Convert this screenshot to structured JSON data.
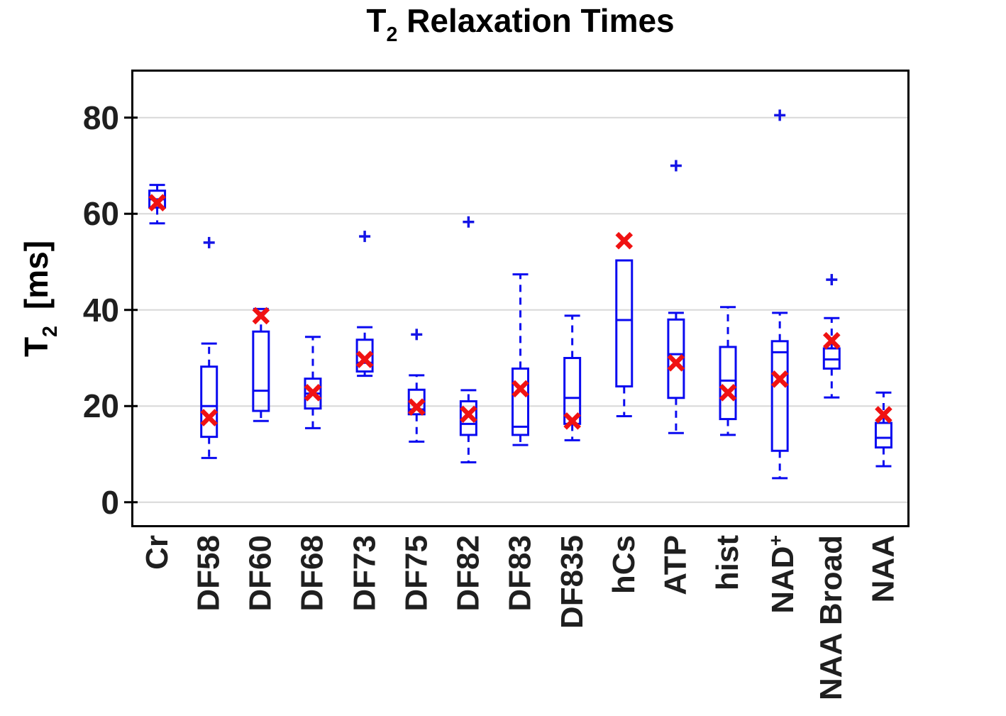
{
  "title": {
    "prefix": "T",
    "sub": "2",
    "rest": " Relaxation Times"
  },
  "y_axis": {
    "label_prefix": "T",
    "label_sub": "2",
    "label_unit": "[ms]"
  },
  "colors": {
    "box": "#0a0af0",
    "mean_marker": "#f01212",
    "outlier": "#1414e6",
    "grid": "#d8d8d8",
    "axis": "#000000",
    "tick_label": "#1f1f1f"
  },
  "x_tick_labels": [
    {
      "text": "Cr",
      "sup": ""
    },
    {
      "text": "DF58",
      "sup": ""
    },
    {
      "text": "DF60",
      "sup": ""
    },
    {
      "text": "DF68",
      "sup": ""
    },
    {
      "text": "DF73",
      "sup": ""
    },
    {
      "text": "DF75",
      "sup": ""
    },
    {
      "text": "DF82",
      "sup": ""
    },
    {
      "text": "DF83",
      "sup": ""
    },
    {
      "text": "DF835",
      "sup": ""
    },
    {
      "text": "hCs",
      "sup": ""
    },
    {
      "text": "ATP",
      "sup": ""
    },
    {
      "text": "hist",
      "sup": ""
    },
    {
      "text": "NAD",
      "sup": "+"
    },
    {
      "text": "NAA Broad",
      "sup": ""
    },
    {
      "text": "NAA",
      "sup": ""
    }
  ],
  "chart_data": {
    "type": "boxplot",
    "title": "T2 Relaxation Times",
    "ylabel": "T2 [ms]",
    "ylim": [
      -5.2,
      90
    ],
    "yticks": [
      0,
      20,
      40,
      60,
      80
    ],
    "grid": "horizontal",
    "legend": "none",
    "mean_marker": "red x",
    "outlier_marker": "blue +",
    "categories": [
      "Cr",
      "DF58",
      "DF60",
      "DF68",
      "DF73",
      "DF75",
      "DF82",
      "DF83",
      "DF835",
      "hCs",
      "ATP",
      "hist",
      "NAD+",
      "NAA Broad",
      "NAA"
    ],
    "series": [
      {
        "name": "Cr",
        "whisker_low": 58.0,
        "q1": 61.3,
        "median": 63.0,
        "q3": 64.8,
        "whisker_high": 66.0,
        "mean": 62.3,
        "outliers": []
      },
      {
        "name": "DF58",
        "whisker_low": 9.2,
        "q1": 13.6,
        "median": 20.0,
        "q3": 28.2,
        "whisker_high": 33.0,
        "mean": 17.6,
        "outliers": [
          54.0
        ]
      },
      {
        "name": "DF60",
        "whisker_low": 16.9,
        "q1": 19.0,
        "median": 23.2,
        "q3": 35.5,
        "whisker_high": 40.2,
        "mean": 38.8,
        "outliers": []
      },
      {
        "name": "DF68",
        "whisker_low": 15.4,
        "q1": 19.5,
        "median": 22.6,
        "q3": 25.7,
        "whisker_high": 34.4,
        "mean": 22.8,
        "outliers": []
      },
      {
        "name": "DF73",
        "whisker_low": 26.3,
        "q1": 27.2,
        "median": 29.0,
        "q3": 33.8,
        "whisker_high": 36.4,
        "mean": 29.7,
        "outliers": [
          55.3
        ]
      },
      {
        "name": "DF75",
        "whisker_low": 12.6,
        "q1": 18.3,
        "median": 19.3,
        "q3": 23.4,
        "whisker_high": 26.4,
        "mean": 19.8,
        "outliers": [
          34.9
        ]
      },
      {
        "name": "DF82",
        "whisker_low": 8.3,
        "q1": 14.0,
        "median": 16.3,
        "q3": 21.0,
        "whisker_high": 23.3,
        "mean": 18.3,
        "outliers": [
          58.3
        ]
      },
      {
        "name": "DF83",
        "whisker_low": 11.9,
        "q1": 14.0,
        "median": 15.7,
        "q3": 27.8,
        "whisker_high": 47.4,
        "mean": 23.6,
        "outliers": []
      },
      {
        "name": "DF835",
        "whisker_low": 12.9,
        "q1": 16.3,
        "median": 21.7,
        "q3": 30.0,
        "whisker_high": 38.8,
        "mean": 16.9,
        "outliers": []
      },
      {
        "name": "hCs",
        "whisker_low": 17.9,
        "q1": 24.1,
        "median": 37.9,
        "q3": 50.3,
        "whisker_high": 50.3,
        "mean": 54.4,
        "outliers": []
      },
      {
        "name": "ATP",
        "whisker_low": 14.4,
        "q1": 21.7,
        "median": 30.8,
        "q3": 38.0,
        "whisker_high": 39.4,
        "mean": 29.0,
        "outliers": [
          70.0
        ]
      },
      {
        "name": "hist",
        "whisker_low": 14.0,
        "q1": 17.3,
        "median": 25.3,
        "q3": 32.3,
        "whisker_high": 40.6,
        "mean": 22.8,
        "outliers": []
      },
      {
        "name": "NAD+",
        "whisker_low": 5.0,
        "q1": 10.7,
        "median": 31.2,
        "q3": 33.5,
        "whisker_high": 39.4,
        "mean": 25.6,
        "outliers": [
          80.5
        ]
      },
      {
        "name": "NAA Broad",
        "whisker_low": 21.8,
        "q1": 27.8,
        "median": 29.7,
        "q3": 32.0,
        "whisker_high": 38.3,
        "mean": 33.6,
        "outliers": [
          46.3
        ]
      },
      {
        "name": "NAA",
        "whisker_low": 7.5,
        "q1": 11.4,
        "median": 13.4,
        "q3": 16.5,
        "whisker_high": 22.8,
        "mean": 18.2,
        "outliers": []
      }
    ]
  }
}
